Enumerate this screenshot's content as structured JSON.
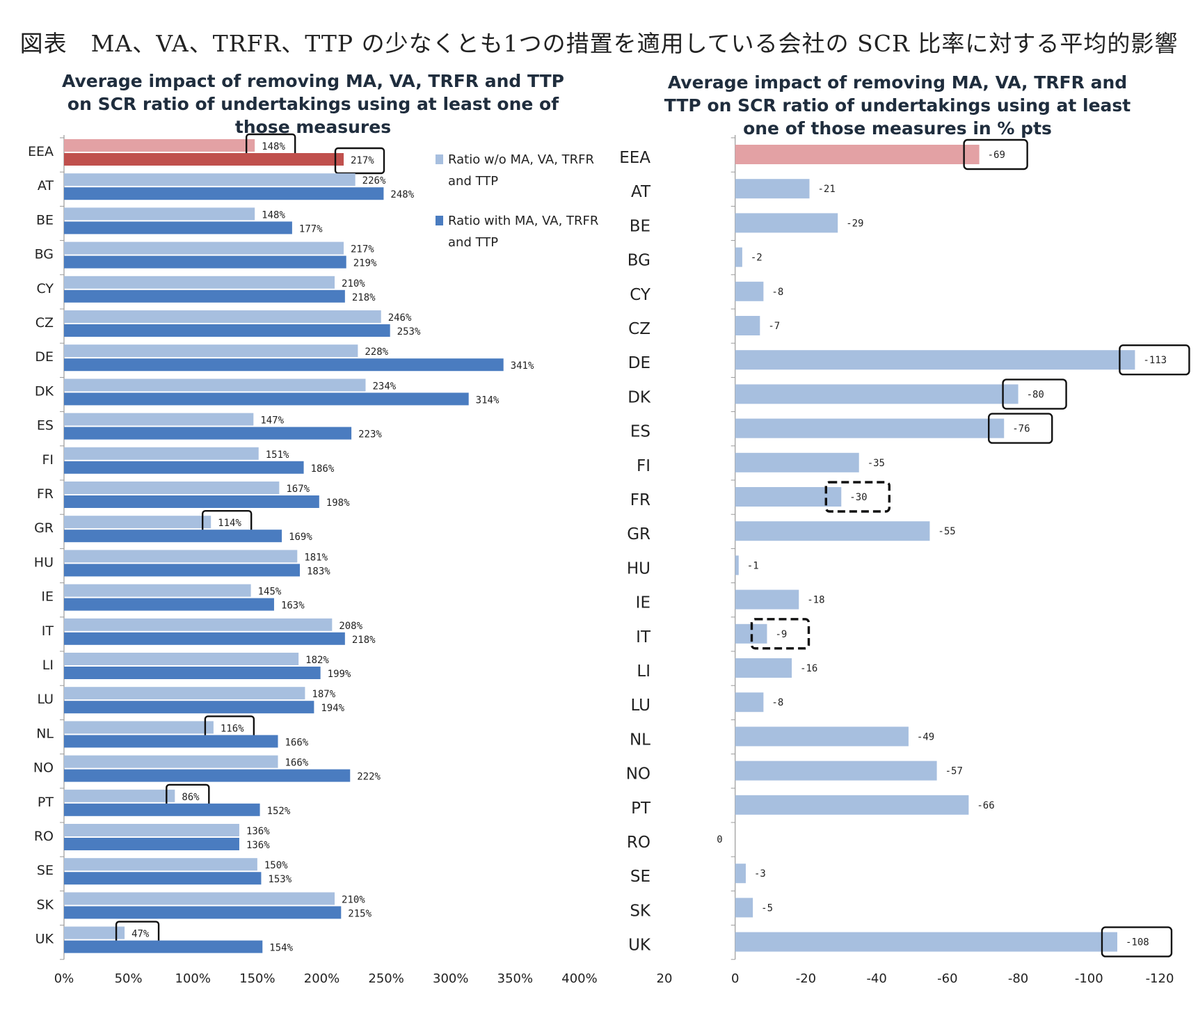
{
  "page_title": "図表　MA、VA、TRFR、TTP の少なくとも1つの措置を適用している会社の SCR 比率に対する平均的影響",
  "colors": {
    "ratio_without": "#a7bfdf",
    "ratio_with": "#4a7cc0",
    "eea_without": "#e3a1a4",
    "eea_with": "#c0504d",
    "impact": "#a7bfdf",
    "impact_eea": "#e3a1a4"
  },
  "chart_data": [
    {
      "type": "bar",
      "orientation": "horizontal",
      "title_lines": [
        "Average impact of removing MA, VA, TRFR and TTP",
        "on SCR ratio of undertakings using at least one of",
        "those measures"
      ],
      "categories": [
        "EEA",
        "AT",
        "BE",
        "BG",
        "CY",
        "CZ",
        "DE",
        "DK",
        "ES",
        "FI",
        "FR",
        "GR",
        "HU",
        "IE",
        "IT",
        "LI",
        "LU",
        "NL",
        "NO",
        "PT",
        "RO",
        "SE",
        "SK",
        "UK"
      ],
      "series": [
        {
          "name": "Ratio w/o MA, VA, TRFR and TTP",
          "legend_lines": [
            "Ratio w/o MA, VA, TRFR",
            "and TTP"
          ],
          "values": [
            148,
            226,
            148,
            217,
            210,
            246,
            228,
            234,
            147,
            151,
            167,
            114,
            181,
            145,
            208,
            182,
            187,
            116,
            166,
            86,
            136,
            150,
            210,
            47
          ]
        },
        {
          "name": "Ratio with MA, VA, TRFR and TTP",
          "legend_lines": [
            "Ratio with MA, VA, TRFR",
            "and TTP"
          ],
          "values": [
            217,
            248,
            177,
            219,
            218,
            253,
            341,
            314,
            223,
            186,
            198,
            169,
            183,
            163,
            218,
            199,
            194,
            166,
            222,
            152,
            136,
            153,
            215,
            154
          ]
        }
      ],
      "unit": "%",
      "xlim": [
        0,
        400
      ],
      "xticks": [
        "0%",
        "50%",
        "100%",
        "150%",
        "200%",
        "250%",
        "300%",
        "350%",
        "400%"
      ],
      "grid": false,
      "legend_position": "top-right",
      "highlighted": [
        {
          "category": "EEA",
          "series": 0
        },
        {
          "category": "EEA",
          "series": 1
        },
        {
          "category": "GR",
          "series": 0
        },
        {
          "category": "NL",
          "series": 0
        },
        {
          "category": "PT",
          "series": 0
        },
        {
          "category": "UK",
          "series": 0
        }
      ]
    },
    {
      "type": "bar",
      "orientation": "horizontal",
      "title_lines": [
        "Average impact of removing MA, VA, TRFR and",
        "TTP on SCR ratio of undertakings using at least",
        "one of those measures in % pts"
      ],
      "categories": [
        "EEA",
        "AT",
        "BE",
        "BG",
        "CY",
        "CZ",
        "DE",
        "DK",
        "ES",
        "FI",
        "FR",
        "GR",
        "HU",
        "IE",
        "IT",
        "LI",
        "LU",
        "NL",
        "NO",
        "PT",
        "RO",
        "SE",
        "SK",
        "UK"
      ],
      "values": [
        -69,
        -21,
        -29,
        -2,
        -8,
        -7,
        -113,
        -80,
        -76,
        -35,
        -30,
        -55,
        -1,
        -18,
        -9,
        -16,
        -8,
        -49,
        -57,
        -66,
        0,
        -3,
        -5,
        -108
      ],
      "xlim": [
        20,
        -120
      ],
      "xticks": [
        "20",
        "0",
        "-20",
        "-40",
        "-60",
        "-80",
        "-100",
        "-120"
      ],
      "grid": false,
      "highlighted_solid": [
        "EEA",
        "DE",
        "DK",
        "ES",
        "UK"
      ],
      "highlighted_dashed": [
        "FR",
        "IT"
      ]
    }
  ]
}
